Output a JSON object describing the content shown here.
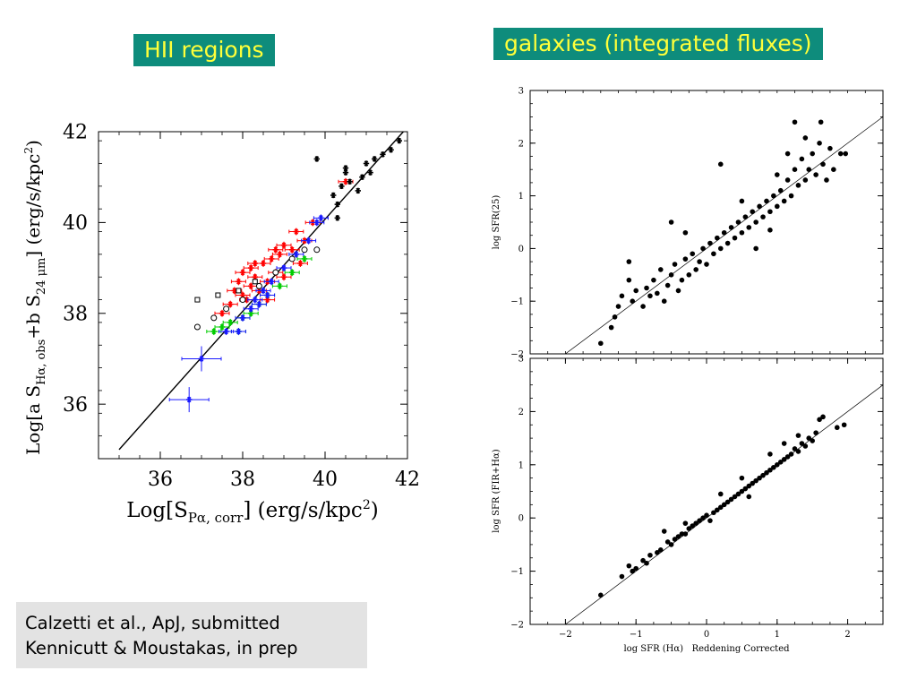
{
  "titles": {
    "left": "HII regions",
    "right": "galaxies (integrated fluxes)"
  },
  "citation": {
    "line1": "Calzetti et al., ApJ, submitted",
    "line2": "Kennicutt & Moustakas, in prep"
  },
  "colors": {
    "title_bg": "#0e8c7c",
    "title_text": "#ffff3a",
    "red": "#ff0000",
    "blue": "#1a1aff",
    "green": "#00cc00",
    "black": "#000000"
  },
  "chart_data": [
    {
      "type": "scatter",
      "title": "HII regions",
      "xlabel": "Log[S_Pα, corr] (erg/s/kpc²)",
      "ylabel": "Log[a S_Hα, obs + b S_24 μm] (erg/s/kpc²)",
      "xlim": [
        34.5,
        42
      ],
      "ylim": [
        34.8,
        42
      ],
      "xticks": [
        "36",
        "38",
        "40",
        "42"
      ],
      "yticks": [
        "36",
        "38",
        "40",
        "42"
      ],
      "fit_line": [
        [
          35.0,
          35.0
        ],
        [
          41.9,
          42.0
        ]
      ],
      "series": [
        {
          "color": "red",
          "marker": "asterisk-errorbar",
          "points": [
            [
              37.5,
              38.0
            ],
            [
              37.7,
              38.2
            ],
            [
              37.8,
              38.5
            ],
            [
              37.9,
              38.7
            ],
            [
              38.0,
              38.4
            ],
            [
              38.0,
              38.9
            ],
            [
              38.1,
              38.3
            ],
            [
              38.2,
              38.6
            ],
            [
              38.2,
              39.0
            ],
            [
              38.3,
              38.8
            ],
            [
              38.4,
              38.5
            ],
            [
              38.5,
              39.1
            ],
            [
              38.6,
              38.7
            ],
            [
              38.7,
              39.2
            ],
            [
              38.8,
              38.9
            ],
            [
              38.9,
              39.3
            ],
            [
              39.0,
              38.8
            ],
            [
              39.0,
              39.5
            ],
            [
              39.2,
              39.4
            ],
            [
              39.3,
              39.8
            ],
            [
              39.5,
              39.6
            ],
            [
              39.7,
              40.0
            ],
            [
              38.6,
              38.3
            ],
            [
              38.3,
              39.1
            ],
            [
              38.8,
              39.4
            ],
            [
              39.4,
              39.1
            ],
            [
              40.5,
              40.9
            ]
          ]
        },
        {
          "color": "green",
          "marker": "asterisk-errorbar",
          "points": [
            [
              37.3,
              37.6
            ],
            [
              37.5,
              37.7
            ],
            [
              37.7,
              37.8
            ],
            [
              37.9,
              37.6
            ],
            [
              38.0,
              37.9
            ],
            [
              38.2,
              38.0
            ],
            [
              38.4,
              38.2
            ],
            [
              38.6,
              38.4
            ],
            [
              38.9,
              38.6
            ],
            [
              39.2,
              38.9
            ],
            [
              39.5,
              39.2
            ]
          ]
        },
        {
          "color": "blue",
          "marker": "asterisk-errorbar",
          "points": [
            [
              36.7,
              36.1
            ],
            [
              37.0,
              37.0
            ],
            [
              37.6,
              37.6
            ],
            [
              37.9,
              37.6
            ],
            [
              38.0,
              37.9
            ],
            [
              38.2,
              38.1
            ],
            [
              38.3,
              38.3
            ],
            [
              38.4,
              38.2
            ],
            [
              38.5,
              38.5
            ],
            [
              38.6,
              38.4
            ],
            [
              38.7,
              38.7
            ],
            [
              39.0,
              39.0
            ],
            [
              39.3,
              39.3
            ],
            [
              39.6,
              39.6
            ],
            [
              39.8,
              40.0
            ],
            [
              39.9,
              40.1
            ]
          ]
        },
        {
          "color": "black",
          "marker": "asterisk",
          "points": [
            [
              39.8,
              41.4
            ],
            [
              40.2,
              40.6
            ],
            [
              40.3,
              40.4
            ],
            [
              40.4,
              40.8
            ],
            [
              40.5,
              41.1
            ],
            [
              40.6,
              40.9
            ],
            [
              40.8,
              40.7
            ],
            [
              40.9,
              41.0
            ],
            [
              41.0,
              41.3
            ],
            [
              41.1,
              41.1
            ],
            [
              41.2,
              41.4
            ],
            [
              41.4,
              41.5
            ],
            [
              41.6,
              41.6
            ],
            [
              41.8,
              41.8
            ],
            [
              40.3,
              40.1
            ],
            [
              40.5,
              41.2
            ]
          ]
        },
        {
          "color": "black",
          "marker": "open-circle",
          "points": [
            [
              36.9,
              37.7
            ],
            [
              37.3,
              37.9
            ],
            [
              37.6,
              38.1
            ],
            [
              38.0,
              38.3
            ],
            [
              38.4,
              38.6
            ],
            [
              38.8,
              38.9
            ],
            [
              39.2,
              39.2
            ],
            [
              39.5,
              39.4
            ],
            [
              39.8,
              39.4
            ]
          ]
        },
        {
          "color": "black",
          "marker": "open-square",
          "points": [
            [
              36.9,
              38.3
            ],
            [
              37.4,
              38.4
            ],
            [
              37.9,
              38.5
            ],
            [
              38.3,
              38.7
            ]
          ]
        }
      ]
    },
    {
      "type": "scatter",
      "xlabel": "",
      "ylabel": "log SFR(25)",
      "xlim": [
        -2.5,
        2.5
      ],
      "ylim": [
        -2,
        3
      ],
      "xticks": [],
      "yticks": [
        "−2",
        "−1",
        "0",
        "1",
        "2",
        "3"
      ],
      "fit_line": [
        [
          -2.0,
          -2.0
        ],
        [
          2.5,
          2.5
        ]
      ],
      "series": [
        {
          "color": "black",
          "marker": "filled-circle",
          "points": [
            [
              -1.5,
              -1.8
            ],
            [
              -1.35,
              -1.5
            ],
            [
              -1.3,
              -1.3
            ],
            [
              -1.25,
              -1.1
            ],
            [
              -1.2,
              -0.9
            ],
            [
              -1.1,
              -0.6
            ],
            [
              -1.05,
              -1.0
            ],
            [
              -1.0,
              -0.8
            ],
            [
              -0.9,
              -1.1
            ],
            [
              -0.85,
              -0.75
            ],
            [
              -0.8,
              -0.9
            ],
            [
              -0.75,
              -0.6
            ],
            [
              -0.7,
              -0.85
            ],
            [
              -0.65,
              -0.4
            ],
            [
              -0.6,
              -1.0
            ],
            [
              -0.55,
              -0.7
            ],
            [
              -0.5,
              -0.5
            ],
            [
              -0.45,
              -0.3
            ],
            [
              -0.4,
              -0.8
            ],
            [
              -0.35,
              -0.6
            ],
            [
              -0.3,
              -0.2
            ],
            [
              -0.25,
              -0.5
            ],
            [
              -0.2,
              -0.1
            ],
            [
              -0.15,
              -0.4
            ],
            [
              -0.1,
              -0.25
            ],
            [
              -0.05,
              0.0
            ],
            [
              0.0,
              -0.3
            ],
            [
              0.05,
              0.1
            ],
            [
              0.1,
              -0.1
            ],
            [
              0.15,
              0.2
            ],
            [
              0.2,
              0.0
            ],
            [
              0.25,
              0.3
            ],
            [
              0.3,
              0.1
            ],
            [
              0.35,
              0.4
            ],
            [
              0.4,
              0.2
            ],
            [
              0.45,
              0.5
            ],
            [
              0.5,
              0.3
            ],
            [
              0.55,
              0.6
            ],
            [
              0.6,
              0.4
            ],
            [
              0.65,
              0.7
            ],
            [
              0.7,
              0.5
            ],
            [
              0.75,
              0.8
            ],
            [
              0.8,
              0.6
            ],
            [
              0.85,
              0.9
            ],
            [
              0.9,
              0.7
            ],
            [
              0.95,
              1.0
            ],
            [
              1.0,
              0.8
            ],
            [
              1.05,
              1.1
            ],
            [
              1.1,
              0.9
            ],
            [
              1.15,
              1.3
            ],
            [
              1.2,
              1.0
            ],
            [
              1.25,
              1.5
            ],
            [
              1.3,
              1.2
            ],
            [
              1.35,
              1.7
            ],
            [
              1.4,
              1.3
            ],
            [
              1.45,
              1.5
            ],
            [
              1.5,
              1.8
            ],
            [
              1.55,
              1.4
            ],
            [
              1.6,
              2.0
            ],
            [
              1.65,
              1.6
            ],
            [
              1.7,
              1.3
            ],
            [
              1.75,
              1.9
            ],
            [
              1.8,
              1.5
            ],
            [
              1.9,
              1.8
            ],
            [
              1.97,
              1.8
            ],
            [
              1.25,
              2.4
            ],
            [
              1.62,
              2.4
            ],
            [
              -1.1,
              -0.25
            ],
            [
              -0.5,
              0.5
            ],
            [
              0.2,
              1.6
            ],
            [
              0.9,
              0.35
            ],
            [
              1.0,
              1.4
            ],
            [
              1.4,
              2.1
            ],
            [
              0.7,
              0.0
            ],
            [
              -0.3,
              0.3
            ],
            [
              0.5,
              0.9
            ],
            [
              1.15,
              1.8
            ]
          ]
        }
      ]
    },
    {
      "type": "scatter",
      "xlabel": "log SFR (Hα)   Reddening Corrected",
      "ylabel": "log SFR (FIR+Hα)",
      "xlim": [
        -2.5,
        2.5
      ],
      "ylim": [
        -2,
        3
      ],
      "xticks": [
        "−2",
        "−1",
        "0",
        "1",
        "2"
      ],
      "yticks": [
        "−2",
        "−1",
        "0",
        "1",
        "2",
        "3"
      ],
      "fit_line": [
        [
          -2.0,
          -2.0
        ],
        [
          2.5,
          2.5
        ]
      ],
      "series": [
        {
          "color": "black",
          "marker": "filled-circle",
          "points": [
            [
              -1.5,
              -1.45
            ],
            [
              -1.2,
              -1.1
            ],
            [
              -1.1,
              -0.9
            ],
            [
              -1.05,
              -1.0
            ],
            [
              -1.0,
              -0.95
            ],
            [
              -0.9,
              -0.8
            ],
            [
              -0.85,
              -0.85
            ],
            [
              -0.8,
              -0.7
            ],
            [
              -0.7,
              -0.65
            ],
            [
              -0.65,
              -0.6
            ],
            [
              -0.6,
              -0.25
            ],
            [
              -0.55,
              -0.45
            ],
            [
              -0.5,
              -0.5
            ],
            [
              -0.45,
              -0.4
            ],
            [
              -0.4,
              -0.35
            ],
            [
              -0.35,
              -0.3
            ],
            [
              -0.3,
              -0.3
            ],
            [
              -0.25,
              -0.2
            ],
            [
              -0.2,
              -0.15
            ],
            [
              -0.15,
              -0.1
            ],
            [
              -0.1,
              -0.05
            ],
            [
              -0.05,
              0.0
            ],
            [
              0.0,
              0.05
            ],
            [
              0.05,
              -0.05
            ],
            [
              0.1,
              0.1
            ],
            [
              0.15,
              0.15
            ],
            [
              0.2,
              0.2
            ],
            [
              0.25,
              0.25
            ],
            [
              0.3,
              0.3
            ],
            [
              0.35,
              0.35
            ],
            [
              0.4,
              0.4
            ],
            [
              0.45,
              0.45
            ],
            [
              0.5,
              0.5
            ],
            [
              0.55,
              0.55
            ],
            [
              0.6,
              0.6
            ],
            [
              0.65,
              0.65
            ],
            [
              0.7,
              0.7
            ],
            [
              0.75,
              0.75
            ],
            [
              0.8,
              0.8
            ],
            [
              0.85,
              0.85
            ],
            [
              0.9,
              0.9
            ],
            [
              0.95,
              0.95
            ],
            [
              1.0,
              1.0
            ],
            [
              1.05,
              1.05
            ],
            [
              1.1,
              1.1
            ],
            [
              1.15,
              1.15
            ],
            [
              1.2,
              1.2
            ],
            [
              1.25,
              1.3
            ],
            [
              1.3,
              1.25
            ],
            [
              1.35,
              1.4
            ],
            [
              1.4,
              1.35
            ],
            [
              1.45,
              1.5
            ],
            [
              1.5,
              1.45
            ],
            [
              1.55,
              1.6
            ],
            [
              1.6,
              1.85
            ],
            [
              1.65,
              1.9
            ],
            [
              1.85,
              1.7
            ],
            [
              1.95,
              1.75
            ],
            [
              1.1,
              1.4
            ],
            [
              0.5,
              0.75
            ],
            [
              -0.3,
              -0.1
            ],
            [
              0.9,
              1.2
            ],
            [
              0.2,
              0.45
            ],
            [
              1.3,
              1.55
            ],
            [
              0.6,
              0.4
            ]
          ]
        }
      ]
    }
  ]
}
